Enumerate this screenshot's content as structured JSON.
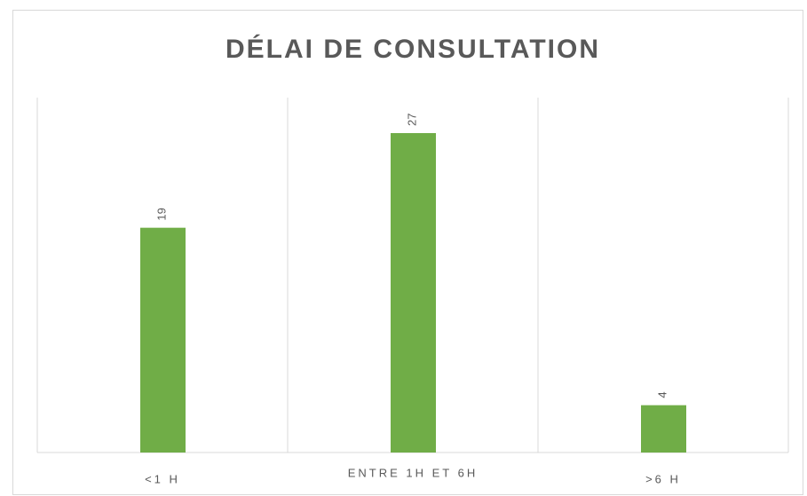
{
  "chart_data": {
    "type": "bar",
    "title": "DÉLAI DE CONSULTATION",
    "categories": [
      "<1 H",
      "ENTRE 1H ET 6H",
      ">6 H"
    ],
    "values": [
      19,
      27,
      4
    ],
    "color": "#70ad47",
    "ylim": [
      0,
      30
    ],
    "grid": true
  }
}
